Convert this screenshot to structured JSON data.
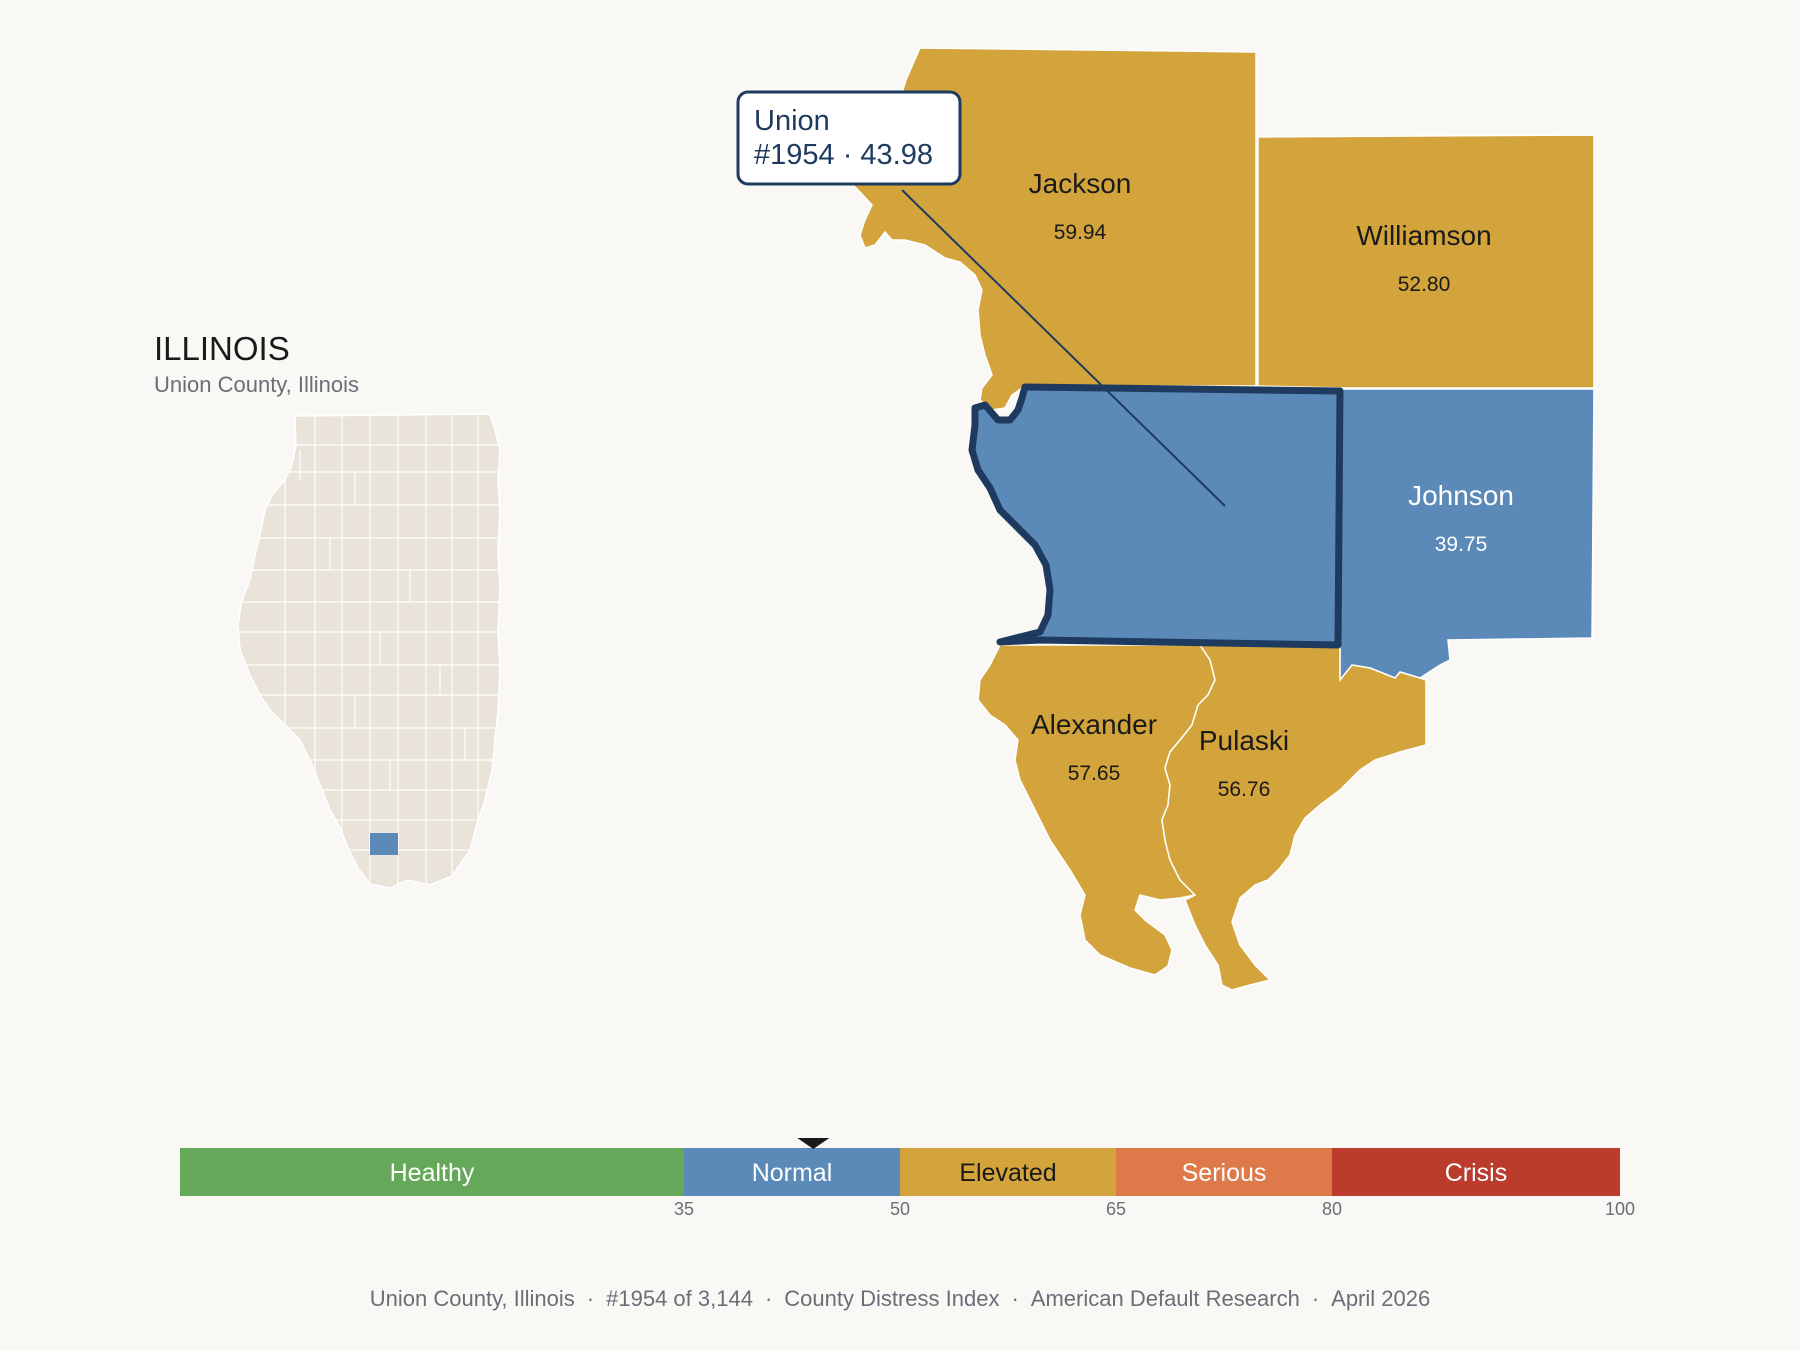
{
  "header": {
    "state": "ILLINOIS",
    "subtitle": "Union County, Illinois"
  },
  "colors": {
    "background": "#f9f8f5",
    "inset_fill": "#e9e3d9",
    "normal": "#5b89b8",
    "elevated": "#d3a43b",
    "highlight_outline": "#1e3a5f",
    "healthy": "#66a85a",
    "serious": "#de7949",
    "crisis": "#bb3c2d"
  },
  "callout": {
    "name": "Union",
    "detail": "#1954 · 43.98"
  },
  "counties": [
    {
      "name": "Jackson",
      "value": "59.94",
      "category": "Elevated"
    },
    {
      "name": "Williamson",
      "value": "52.80",
      "category": "Elevated"
    },
    {
      "name": "Union",
      "value": "43.98",
      "category": "Normal",
      "selected": true
    },
    {
      "name": "Johnson",
      "value": "39.75",
      "category": "Normal"
    },
    {
      "name": "Alexander",
      "value": "57.65",
      "category": "Elevated"
    },
    {
      "name": "Pulaski",
      "value": "56.76",
      "category": "Elevated"
    }
  ],
  "scale": {
    "min": 0,
    "max": 100,
    "marker_value": 43.98,
    "segments": [
      {
        "label": "Healthy",
        "from": 0,
        "to": 35,
        "color": "#66a85a",
        "text_color": "#ffffff"
      },
      {
        "label": "Normal",
        "from": 35,
        "to": 50,
        "color": "#5b89b8",
        "text_color": "#ffffff"
      },
      {
        "label": "Elevated",
        "from": 50,
        "to": 65,
        "color": "#d3a43b",
        "text_color": "#1a1a1a"
      },
      {
        "label": "Serious",
        "from": 65,
        "to": 80,
        "color": "#de7949",
        "text_color": "#ffffff"
      },
      {
        "label": "Crisis",
        "from": 80,
        "to": 100,
        "color": "#bb3c2d",
        "text_color": "#ffffff"
      }
    ],
    "ticks": [
      "35",
      "50",
      "65",
      "80",
      "100"
    ]
  },
  "footer": {
    "location": "Union County, Illinois",
    "rank": "#1954 of 3,144",
    "index": "County Distress Index",
    "source": "American Default Research",
    "date": "April 2026",
    "separator": "·"
  }
}
